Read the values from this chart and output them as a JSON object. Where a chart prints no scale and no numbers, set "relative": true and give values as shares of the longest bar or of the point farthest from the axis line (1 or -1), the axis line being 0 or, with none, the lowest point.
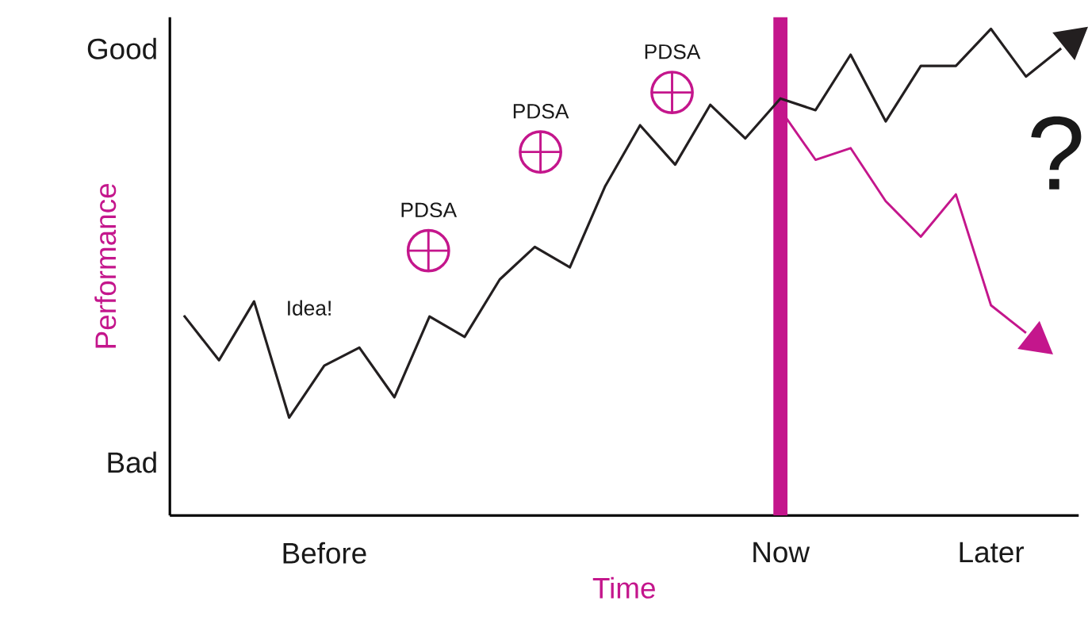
{
  "chart_data": {
    "type": "line",
    "xlabel": "Time",
    "ylabel": "Performance",
    "relative": true,
    "categories": [
      null,
      null,
      null,
      null,
      "Before",
      null,
      null,
      null,
      null,
      null,
      null,
      null,
      null,
      null,
      null,
      null,
      null,
      "Now",
      null,
      null,
      null,
      null,
      null,
      "Later",
      null,
      null
    ],
    "series": [
      {
        "color": "#231f20",
        "values": [
          0.411,
          0.319,
          0.44,
          0.201,
          0.308,
          0.345,
          0.243,
          0.409,
          0.367,
          0.485,
          0.552,
          0.51,
          0.676,
          0.802,
          0.721,
          0.844,
          0.775,
          0.857,
          0.833,
          0.947,
          0.81,
          0.924,
          0.924,
          1.0,
          0.902,
          0.96
        ]
      },
      {
        "color": "#c4168c",
        "values": [
          null,
          null,
          null,
          null,
          null,
          null,
          null,
          null,
          null,
          null,
          null,
          null,
          null,
          null,
          null,
          null,
          null,
          0.834,
          0.731,
          0.755,
          0.646,
          0.573,
          0.66,
          0.432,
          0.375,
          null
        ]
      }
    ],
    "ref_lines": [
      {
        "axis": "x",
        "value": "Now",
        "color": "#c4168c"
      }
    ],
    "annotations": [
      "Good",
      "Bad",
      "Idea!",
      "PDSA",
      "PDSA",
      "PDSA",
      "?"
    ],
    "line_style": "solid",
    "marker": "none"
  }
}
